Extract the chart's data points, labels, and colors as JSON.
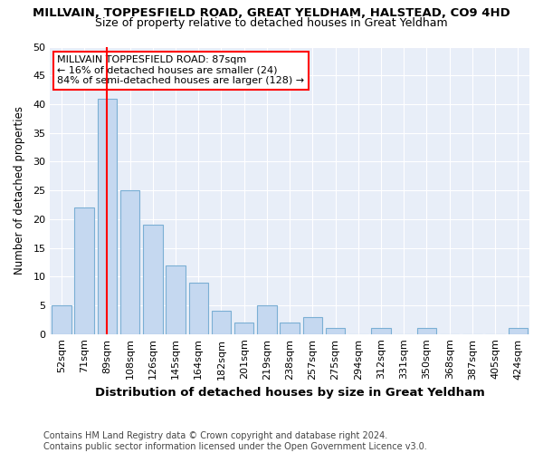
{
  "title1": "MILLVAIN, TOPPESFIELD ROAD, GREAT YELDHAM, HALSTEAD, CO9 4HD",
  "title2": "Size of property relative to detached houses in Great Yeldham",
  "xlabel": "Distribution of detached houses by size in Great Yeldham",
  "ylabel": "Number of detached properties",
  "categories": [
    "52sqm",
    "71sqm",
    "89sqm",
    "108sqm",
    "126sqm",
    "145sqm",
    "164sqm",
    "182sqm",
    "201sqm",
    "219sqm",
    "238sqm",
    "257sqm",
    "275sqm",
    "294sqm",
    "312sqm",
    "331sqm",
    "350sqm",
    "368sqm",
    "387sqm",
    "405sqm",
    "424sqm"
  ],
  "values": [
    5,
    22,
    41,
    25,
    19,
    12,
    9,
    4,
    2,
    5,
    2,
    3,
    1,
    0,
    1,
    0,
    1,
    0,
    0,
    0,
    1
  ],
  "bar_color": "#c5d8f0",
  "bar_edge_color": "#7bafd4",
  "highlight_index": 2,
  "red_line_label": "MILLVAIN TOPPESFIELD ROAD: 87sqm",
  "annotation_line1": "← 16% of detached houses are smaller (24)",
  "annotation_line2": "84% of semi-detached houses are larger (128) →",
  "ylim": [
    0,
    50
  ],
  "yticks": [
    0,
    5,
    10,
    15,
    20,
    25,
    30,
    35,
    40,
    45,
    50
  ],
  "footnote1": "Contains HM Land Registry data © Crown copyright and database right 2024.",
  "footnote2": "Contains public sector information licensed under the Open Government Licence v3.0.",
  "bg_color": "#ffffff",
  "plot_bg_color": "#e8eef8",
  "grid_color": "#ffffff",
  "title1_fontsize": 9.5,
  "title2_fontsize": 9.0,
  "xlabel_fontsize": 9.5,
  "ylabel_fontsize": 8.5,
  "tick_fontsize": 8.0,
  "annot_fontsize": 8.0,
  "footnote_fontsize": 7.0
}
